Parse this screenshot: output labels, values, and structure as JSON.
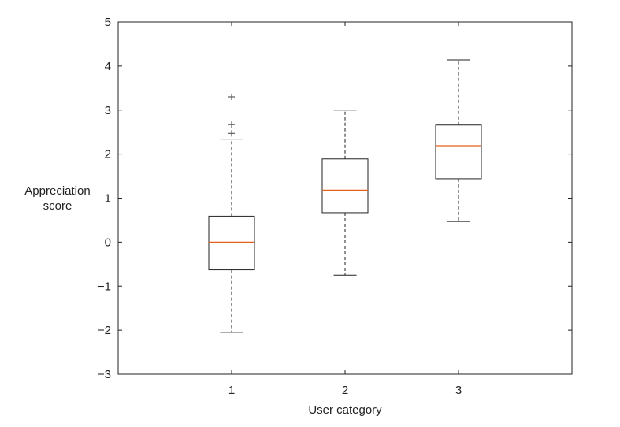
{
  "chart_data": {
    "type": "box",
    "title": "",
    "xlabel": "User category",
    "ylabel_lines": [
      "Appreciation",
      "score"
    ],
    "categories": [
      "1",
      "2",
      "3"
    ],
    "ylim": [
      -3,
      5
    ],
    "yticks": [
      -3,
      -2,
      -1,
      0,
      1,
      2,
      3,
      4,
      5
    ],
    "ytick_labels": [
      "−3",
      "−2",
      "−1",
      "0",
      "1",
      "2",
      "3",
      "4",
      "5"
    ],
    "boxes": [
      {
        "category": "1",
        "whisker_low": -2.05,
        "q1": -0.63,
        "median": 0.0,
        "q3": 0.59,
        "whisker_high": 2.34,
        "outliers": [
          2.47,
          2.67,
          3.3
        ]
      },
      {
        "category": "2",
        "whisker_low": -0.75,
        "q1": 0.67,
        "median": 1.18,
        "q3": 1.89,
        "whisker_high": 3.0,
        "outliers": []
      },
      {
        "category": "3",
        "whisker_low": 0.47,
        "q1": 1.44,
        "median": 2.19,
        "q3": 2.66,
        "whisker_high": 4.14,
        "outliers": []
      }
    ],
    "grid": false,
    "colors": {
      "box": "#222222",
      "median": "#e8611c",
      "outlier": "#666666"
    }
  }
}
